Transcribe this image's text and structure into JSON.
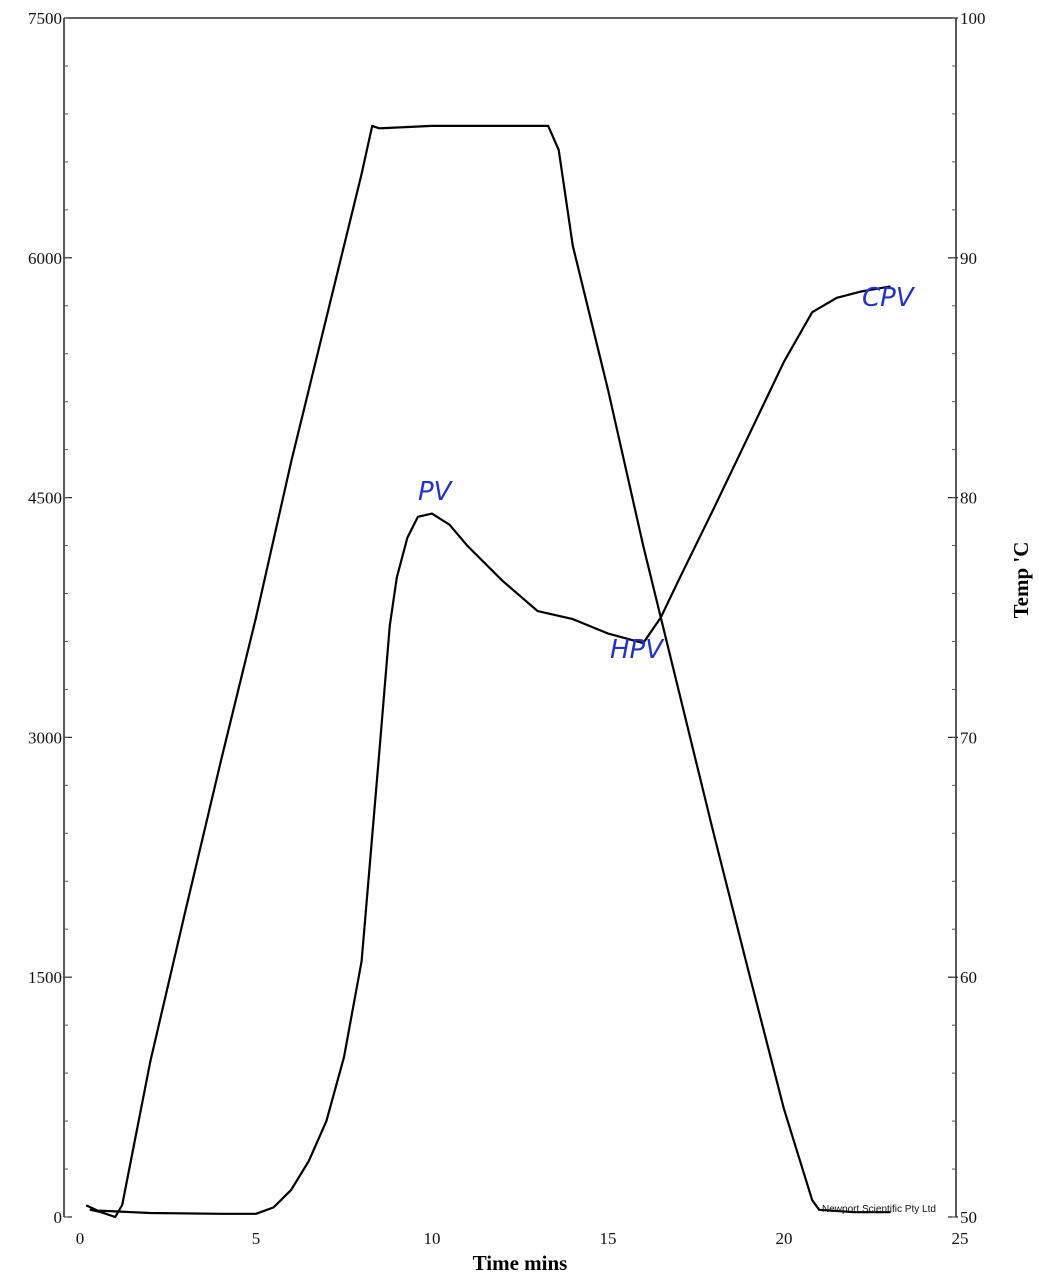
{
  "chart_data": {
    "type": "line",
    "xlabel": "Time mins",
    "ylabel_right": "Temp 'C",
    "xlim": [
      0,
      25
    ],
    "ylim_left": [
      0,
      7500
    ],
    "ylim_right": [
      50,
      100
    ],
    "x_ticks": [
      "0",
      "5",
      "10",
      "15",
      "20",
      "25"
    ],
    "y_left_ticks": [
      "0",
      "1500",
      "3000",
      "4500",
      "6000",
      "7500"
    ],
    "y_right_ticks": [
      "50",
      "60",
      "70",
      "80",
      "90",
      "100"
    ],
    "series": [
      {
        "axis": "right",
        "x": [
          0.3,
          0.6,
          1.0,
          1.2,
          2.0,
          3.0,
          4.0,
          5.0,
          6.0,
          7.0,
          8.0,
          8.3,
          8.5,
          10.0,
          12.0,
          13.3,
          13.6,
          14.0,
          15.0,
          16.0,
          17.0,
          18.0,
          19.0,
          20.0,
          20.8,
          21.0,
          22.0,
          23.0
        ],
        "values": [
          50.3,
          50.2,
          50.0,
          50.5,
          56.5,
          62.8,
          69.0,
          75.0,
          81.5,
          87.5,
          93.5,
          95.5,
          95.4,
          95.5,
          95.5,
          95.5,
          94.5,
          90.5,
          84.5,
          78.0,
          72.0,
          66.0,
          60.2,
          54.5,
          50.7,
          50.3,
          50.2,
          50.2
        ]
      },
      {
        "axis": "left",
        "x": [
          0.2,
          0.3,
          0.5,
          1.0,
          2.0,
          4.0,
          5.0,
          5.5,
          6.0,
          6.5,
          7.0,
          7.5,
          8.0,
          8.5,
          8.8,
          9.0,
          9.3,
          9.6,
          10.0,
          10.5,
          11.0,
          12.0,
          13.0,
          14.0,
          15.0,
          16.0,
          16.5,
          17.0,
          18.0,
          19.0,
          20.0,
          20.8,
          21.5,
          22.2,
          23.0
        ],
        "values": [
          70,
          60,
          40,
          35,
          25,
          20,
          20,
          60,
          170,
          350,
          600,
          1000,
          1600,
          2900,
          3700,
          4000,
          4250,
          4380,
          4400,
          4330,
          4200,
          3980,
          3790,
          3740,
          3650,
          3590,
          3750,
          3980,
          4430,
          4890,
          5350,
          5660,
          5750,
          5790,
          5820
        ]
      }
    ],
    "annotations": [
      "PV",
      "HPV",
      "CPV"
    ],
    "credit": "Newport Scientific Pty Ltd"
  }
}
